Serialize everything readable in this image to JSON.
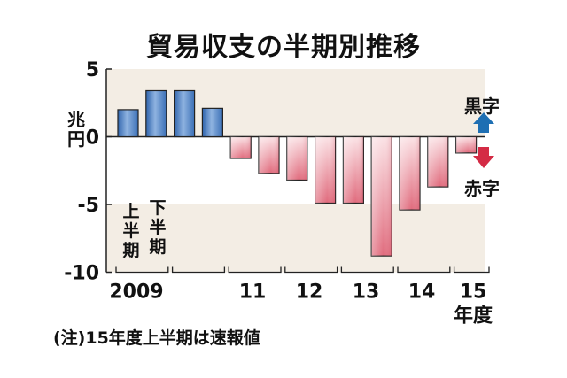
{
  "chart_data": {
    "type": "bar",
    "title": "貿易収支の半期別推移",
    "ylabel": "兆円",
    "y_unit": "兆円",
    "ylim": [
      -10,
      5
    ],
    "yticks": [
      "5",
      "0",
      "-5",
      "-10"
    ],
    "x_tick_labels": [
      "2009",
      "11",
      "12",
      "13",
      "14",
      "15"
    ],
    "x_unit_label": "年度",
    "half_labels": [
      "上半期",
      "下半期"
    ],
    "legend": [
      {
        "label": "黒字",
        "meaning": "surplus",
        "arrow": "up",
        "color": "#1e6fb3"
      },
      {
        "label": "赤字",
        "meaning": "deficit",
        "arrow": "down",
        "color": "#d42b45"
      }
    ],
    "categories": [
      "2009上",
      "2009下",
      "2010上",
      "2010下",
      "2011上",
      "2011下",
      "2012上",
      "2012下",
      "2013上",
      "2013下",
      "2014上",
      "2014下",
      "2015上"
    ],
    "values": [
      2.0,
      3.4,
      3.4,
      2.1,
      -1.6,
      -2.7,
      -3.2,
      -4.9,
      -4.9,
      -8.8,
      -5.4,
      -3.7,
      -1.2
    ],
    "grid": false,
    "band_ranges": [
      [
        0,
        5
      ],
      [
        -10,
        -5
      ]
    ],
    "colors": {
      "positive": "#4f84c7",
      "negative": "#e48995",
      "band": "#f3ede4"
    },
    "note": "(注)15年度上半期は速報値"
  }
}
